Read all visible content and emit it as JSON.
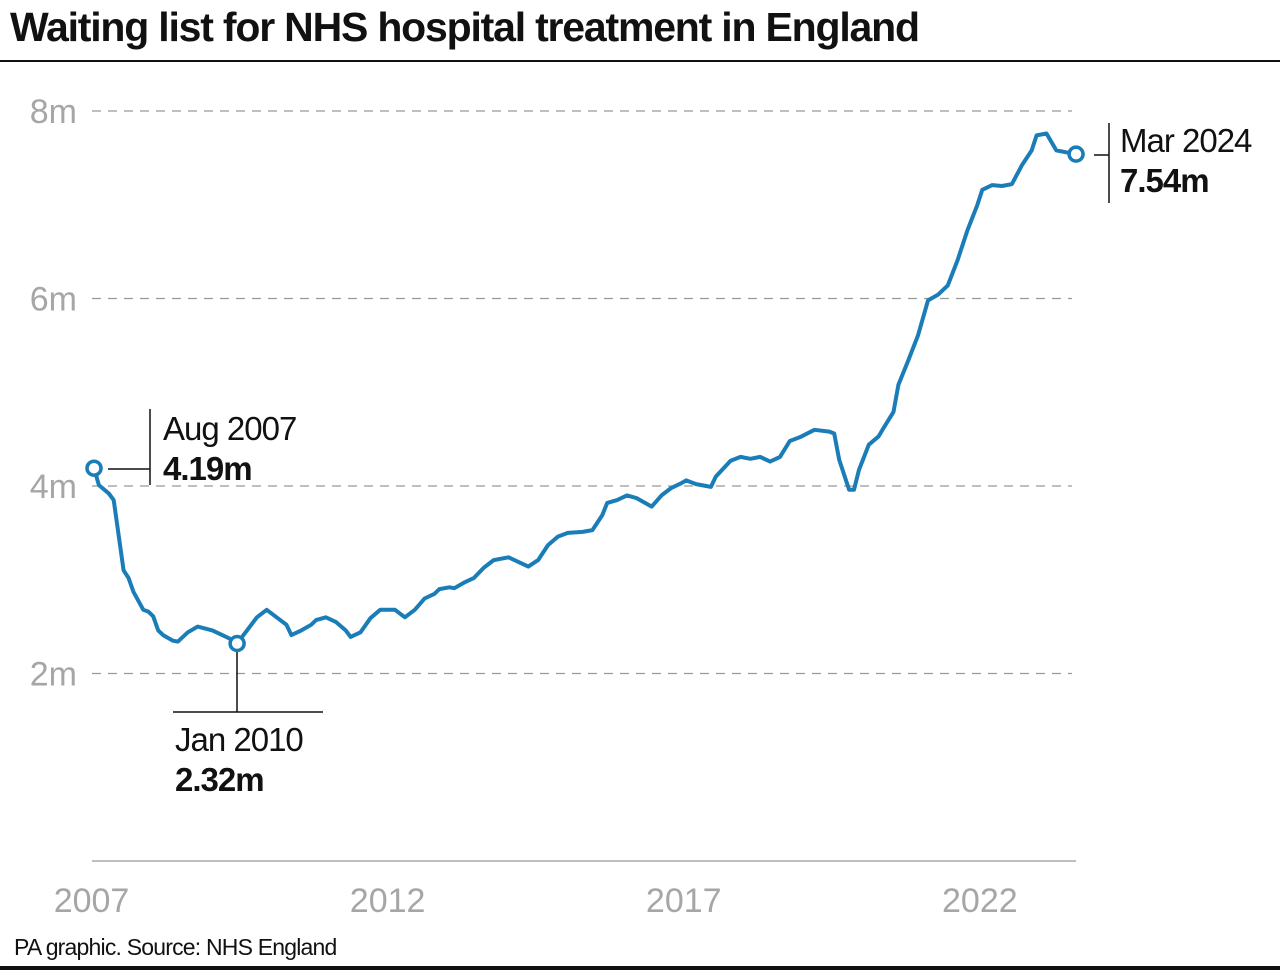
{
  "title": "Waiting list for NHS hospital treatment in England",
  "source": "PA graphic. Source: NHS England",
  "chart_data": {
    "type": "line",
    "title": "Waiting list for NHS hospital treatment in England",
    "xlabel": "",
    "ylabel": "",
    "ylim": [
      0,
      8
    ],
    "y_ticks": [
      {
        "v": 2,
        "label": "2m"
      },
      {
        "v": 4,
        "label": "4m"
      },
      {
        "v": 6,
        "label": "6m"
      },
      {
        "v": 8,
        "label": "8m"
      }
    ],
    "x_ticks": [
      2007,
      2012,
      2017,
      2022
    ],
    "x_tick_labels": [
      "2007",
      "2012",
      "2017",
      "2022"
    ],
    "grid": "horizontal dashed",
    "line_color": "#1a7db8",
    "unit": "millions",
    "points": [
      [
        "2007-08",
        4.19
      ],
      [
        "2007-09",
        4.01
      ],
      [
        "2007-11",
        3.92
      ],
      [
        "2007-12",
        3.85
      ],
      [
        "2008-02",
        3.1
      ],
      [
        "2008-03",
        3.02
      ],
      [
        "2008-04",
        2.87
      ],
      [
        "2008-06",
        2.68
      ],
      [
        "2008-07",
        2.66
      ],
      [
        "2008-08",
        2.61
      ],
      [
        "2008-09",
        2.46
      ],
      [
        "2008-10",
        2.41
      ],
      [
        "2008-12",
        2.35
      ],
      [
        "2009-01",
        2.34
      ],
      [
        "2009-03",
        2.44
      ],
      [
        "2009-05",
        2.5
      ],
      [
        "2009-08",
        2.46
      ],
      [
        "2009-10",
        2.41
      ],
      [
        "2009-12",
        2.36
      ],
      [
        "2010-01",
        2.32
      ],
      [
        "2010-03",
        2.46
      ],
      [
        "2010-05",
        2.6
      ],
      [
        "2010-07",
        2.68
      ],
      [
        "2010-09",
        2.6
      ],
      [
        "2010-11",
        2.52
      ],
      [
        "2010-12",
        2.41
      ],
      [
        "2011-02",
        2.46
      ],
      [
        "2011-04",
        2.52
      ],
      [
        "2011-05",
        2.57
      ],
      [
        "2011-07",
        2.6
      ],
      [
        "2011-09",
        2.55
      ],
      [
        "2011-11",
        2.46
      ],
      [
        "2011-12",
        2.39
      ],
      [
        "2012-02",
        2.44
      ],
      [
        "2012-04",
        2.59
      ],
      [
        "2012-06",
        2.68
      ],
      [
        "2012-09",
        2.68
      ],
      [
        "2012-11",
        2.6
      ],
      [
        "2013-01",
        2.68
      ],
      [
        "2013-03",
        2.8
      ],
      [
        "2013-05",
        2.85
      ],
      [
        "2013-06",
        2.9
      ],
      [
        "2013-08",
        2.92
      ],
      [
        "2013-09",
        2.91
      ],
      [
        "2013-11",
        2.97
      ],
      [
        "2014-01",
        3.02
      ],
      [
        "2014-03",
        3.13
      ],
      [
        "2014-05",
        3.21
      ],
      [
        "2014-08",
        3.24
      ],
      [
        "2014-10",
        3.19
      ],
      [
        "2014-12",
        3.14
      ],
      [
        "2015-02",
        3.21
      ],
      [
        "2015-04",
        3.37
      ],
      [
        "2015-06",
        3.46
      ],
      [
        "2015-08",
        3.5
      ],
      [
        "2015-11",
        3.51
      ],
      [
        "2016-01",
        3.53
      ],
      [
        "2016-03",
        3.69
      ],
      [
        "2016-04",
        3.82
      ],
      [
        "2016-06",
        3.85
      ],
      [
        "2016-08",
        3.9
      ],
      [
        "2016-10",
        3.87
      ],
      [
        "2017-01",
        3.78
      ],
      [
        "2017-03",
        3.9
      ],
      [
        "2017-05",
        3.98
      ],
      [
        "2017-07",
        4.03
      ],
      [
        "2017-08",
        4.06
      ],
      [
        "2017-10",
        4.02
      ],
      [
        "2018-01",
        3.99
      ],
      [
        "2018-02",
        4.1
      ],
      [
        "2018-05",
        4.27
      ],
      [
        "2018-07",
        4.31
      ],
      [
        "2018-09",
        4.29
      ],
      [
        "2018-11",
        4.31
      ],
      [
        "2019-01",
        4.26
      ],
      [
        "2019-03",
        4.31
      ],
      [
        "2019-05",
        4.48
      ],
      [
        "2019-07",
        4.52
      ],
      [
        "2019-10",
        4.6
      ],
      [
        "2020-01",
        4.58
      ],
      [
        "2020-02",
        4.56
      ],
      [
        "2020-03",
        4.28
      ],
      [
        "2020-05",
        3.96
      ],
      [
        "2020-06",
        3.96
      ],
      [
        "2020-07",
        4.17
      ],
      [
        "2020-09",
        4.44
      ],
      [
        "2020-11",
        4.53
      ],
      [
        "2020-12",
        4.62
      ],
      [
        "2021-02",
        4.79
      ],
      [
        "2021-03",
        5.08
      ],
      [
        "2021-05",
        5.34
      ],
      [
        "2021-07",
        5.61
      ],
      [
        "2021-09",
        5.98
      ],
      [
        "2021-11",
        6.04
      ],
      [
        "2022-01",
        6.14
      ],
      [
        "2022-03",
        6.41
      ],
      [
        "2022-05",
        6.73
      ],
      [
        "2022-07",
        7.0
      ],
      [
        "2022-08",
        7.16
      ],
      [
        "2022-10",
        7.21
      ],
      [
        "2022-12",
        7.2
      ],
      [
        "2023-02",
        7.22
      ],
      [
        "2023-04",
        7.42
      ],
      [
        "2023-06",
        7.58
      ],
      [
        "2023-07",
        7.74
      ],
      [
        "2023-09",
        7.76
      ],
      [
        "2023-11",
        7.58
      ],
      [
        "2024-01",
        7.56
      ],
      [
        "2024-03",
        7.54
      ]
    ],
    "annotations": [
      {
        "date": "2007-08",
        "value": 4.19,
        "label": "Aug 2007",
        "value_label": "4.19m"
      },
      {
        "date": "2010-01",
        "value": 2.32,
        "label": "Jan 2010",
        "value_label": "2.32m"
      },
      {
        "date": "2024-03",
        "value": 7.54,
        "label": "Mar 2024",
        "value_label": "7.54m"
      }
    ]
  }
}
